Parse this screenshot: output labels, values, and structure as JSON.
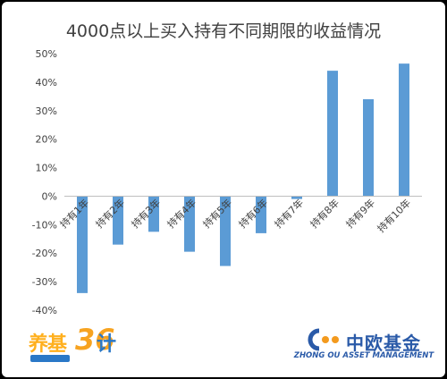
{
  "chart_data": {
    "type": "bar",
    "title": "4000点以上买入持有不同期限的收益情况",
    "categories": [
      "持有1年",
      "持有2年",
      "持有3年",
      "持有4年",
      "持有5年",
      "持有6年",
      "持有7年",
      "持有8年",
      "持有9年",
      "持有10年"
    ],
    "values": [
      -34,
      -17,
      -12.5,
      -19.5,
      -24.5,
      -13,
      -1,
      44,
      34,
      46.5
    ],
    "ylim": [
      -40,
      50
    ],
    "yticks": [
      -40,
      -30,
      -20,
      -10,
      0,
      10,
      20,
      30,
      40,
      50
    ],
    "ytick_labels": [
      "-40%",
      "-30%",
      "-20%",
      "-10%",
      "0%",
      "10%",
      "20%",
      "30%",
      "40%",
      "50%"
    ],
    "bar_color": "#5b9bd5",
    "grid": false,
    "legend": "none"
  },
  "branding": {
    "left_logo": {
      "text_a": "养基",
      "text_b": "36",
      "text_c": "计",
      "colors": [
        "#ffb01e",
        "#2a78c7"
      ]
    },
    "right_logo": {
      "name": "中欧基金",
      "english": "ZHONG OU ASSET MANAGEMENT",
      "color": "#2a5aa8"
    }
  }
}
